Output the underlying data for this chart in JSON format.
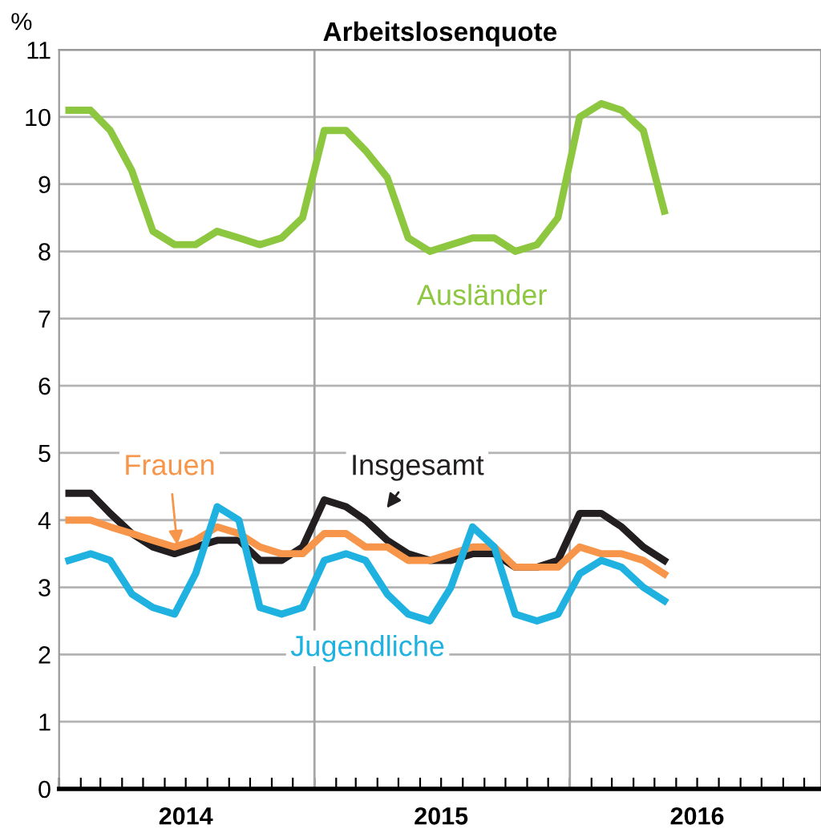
{
  "chart_data": {
    "type": "line",
    "title": "Arbeitslosenquote",
    "ylabel": "%",
    "x": [
      "2014-01-15",
      "2014-02-15",
      "2014-03-15",
      "2014-04-15",
      "2014-05-15",
      "2014-06-15",
      "2014-07-15",
      "2014-08-15",
      "2014-09-15",
      "2014-10-15",
      "2014-11-15",
      "2014-12-15",
      "2015-01-15",
      "2015-02-15",
      "2015-03-15",
      "2015-04-15",
      "2015-05-15",
      "2015-06-15",
      "2015-07-15",
      "2015-08-15",
      "2015-09-15",
      "2015-10-15",
      "2015-11-15",
      "2015-12-15",
      "2016-01-15",
      "2016-02-15",
      "2016-03-15",
      "2016-04-15",
      "2016-05-15"
    ],
    "xlim": [
      "2014-01-01",
      "2016-12-25"
    ],
    "xticks": [
      {
        "value": "2014-01-01",
        "label": null
      },
      {
        "value": "2014-02-01",
        "label": null
      },
      {
        "value": "2014-03-01",
        "label": null
      },
      {
        "value": "2014-04-01",
        "label": null
      },
      {
        "value": "2014-05-01",
        "label": null
      },
      {
        "value": "2014-06-01",
        "label": null
      },
      {
        "value": "2014-07-01",
        "label": "2014"
      },
      {
        "value": "2014-08-01",
        "label": null
      },
      {
        "value": "2014-09-01",
        "label": null
      },
      {
        "value": "2014-10-01",
        "label": null
      },
      {
        "value": "2014-11-01",
        "label": null
      },
      {
        "value": "2014-12-01",
        "label": null
      },
      {
        "value": "2015-01-01",
        "label": null
      },
      {
        "value": "2015-02-01",
        "label": null
      },
      {
        "value": "2015-03-01",
        "label": null
      },
      {
        "value": "2015-04-01",
        "label": null
      },
      {
        "value": "2015-05-01",
        "label": null
      },
      {
        "value": "2015-06-01",
        "label": null
      },
      {
        "value": "2015-07-01",
        "label": "2015"
      },
      {
        "value": "2015-08-01",
        "label": null
      },
      {
        "value": "2015-09-01",
        "label": null
      },
      {
        "value": "2015-10-01",
        "label": null
      },
      {
        "value": "2015-11-01",
        "label": null
      },
      {
        "value": "2015-12-01",
        "label": null
      },
      {
        "value": "2016-01-01",
        "label": null
      },
      {
        "value": "2016-02-01",
        "label": null
      },
      {
        "value": "2016-03-01",
        "label": null
      },
      {
        "value": "2016-04-01",
        "label": null
      },
      {
        "value": "2016-05-01",
        "label": null
      },
      {
        "value": "2016-06-01",
        "label": null
      },
      {
        "value": "2016-07-01",
        "label": "2016"
      },
      {
        "value": "2016-08-01",
        "label": null
      },
      {
        "value": "2016-09-01",
        "label": null
      },
      {
        "value": "2016-10-01",
        "label": null
      },
      {
        "value": "2016-11-01",
        "label": null
      },
      {
        "value": "2016-12-01",
        "label": null
      }
    ],
    "ylim": [
      0,
      11
    ],
    "yticks": [
      0,
      1,
      2,
      3,
      4,
      5,
      6,
      7,
      8,
      9,
      10,
      11
    ],
    "grid": "y",
    "ref_lines": [
      {
        "axis": "x",
        "value": "2015-01-01",
        "label": null,
        "color": "#a6a6a6"
      },
      {
        "axis": "x",
        "value": "2016-01-01",
        "label": null,
        "color": "#a6a6a6"
      }
    ],
    "series": [
      {
        "name": "Ausländer",
        "color": "#8dc63f",
        "values": [
          10.1,
          10.1,
          9.8,
          9.2,
          8.3,
          8.1,
          8.1,
          8.3,
          8.2,
          8.1,
          8.2,
          8.5,
          9.8,
          9.8,
          9.5,
          9.1,
          8.2,
          8.0,
          8.1,
          8.2,
          8.2,
          8.0,
          8.1,
          8.5,
          10.0,
          10.2,
          10.1,
          9.8,
          8.6
        ]
      },
      {
        "name": "Insgesamt",
        "color": "#231f20",
        "values": [
          4.4,
          4.4,
          4.1,
          3.8,
          3.6,
          3.5,
          3.6,
          3.7,
          3.7,
          3.4,
          3.4,
          3.6,
          4.3,
          4.2,
          4.0,
          3.7,
          3.5,
          3.4,
          3.4,
          3.5,
          3.5,
          3.3,
          3.3,
          3.4,
          4.1,
          4.1,
          3.9,
          3.6,
          3.4
        ]
      },
      {
        "name": "Frauen",
        "color": "#f7964a",
        "values": [
          4.0,
          4.0,
          3.9,
          3.8,
          3.7,
          3.6,
          3.7,
          3.9,
          3.8,
          3.6,
          3.5,
          3.5,
          3.8,
          3.8,
          3.6,
          3.6,
          3.4,
          3.4,
          3.5,
          3.6,
          3.6,
          3.3,
          3.3,
          3.3,
          3.6,
          3.5,
          3.5,
          3.4,
          3.2
        ]
      },
      {
        "name": "Jugendliche",
        "color": "#1fb1e0",
        "values": [
          3.4,
          3.5,
          3.4,
          2.9,
          2.7,
          2.6,
          3.2,
          4.2,
          4.0,
          2.7,
          2.6,
          2.7,
          3.4,
          3.5,
          3.4,
          2.9,
          2.6,
          2.5,
          3.0,
          3.9,
          3.6,
          2.6,
          2.5,
          2.6,
          3.2,
          3.4,
          3.3,
          3.0,
          2.8
        ]
      }
    ]
  }
}
